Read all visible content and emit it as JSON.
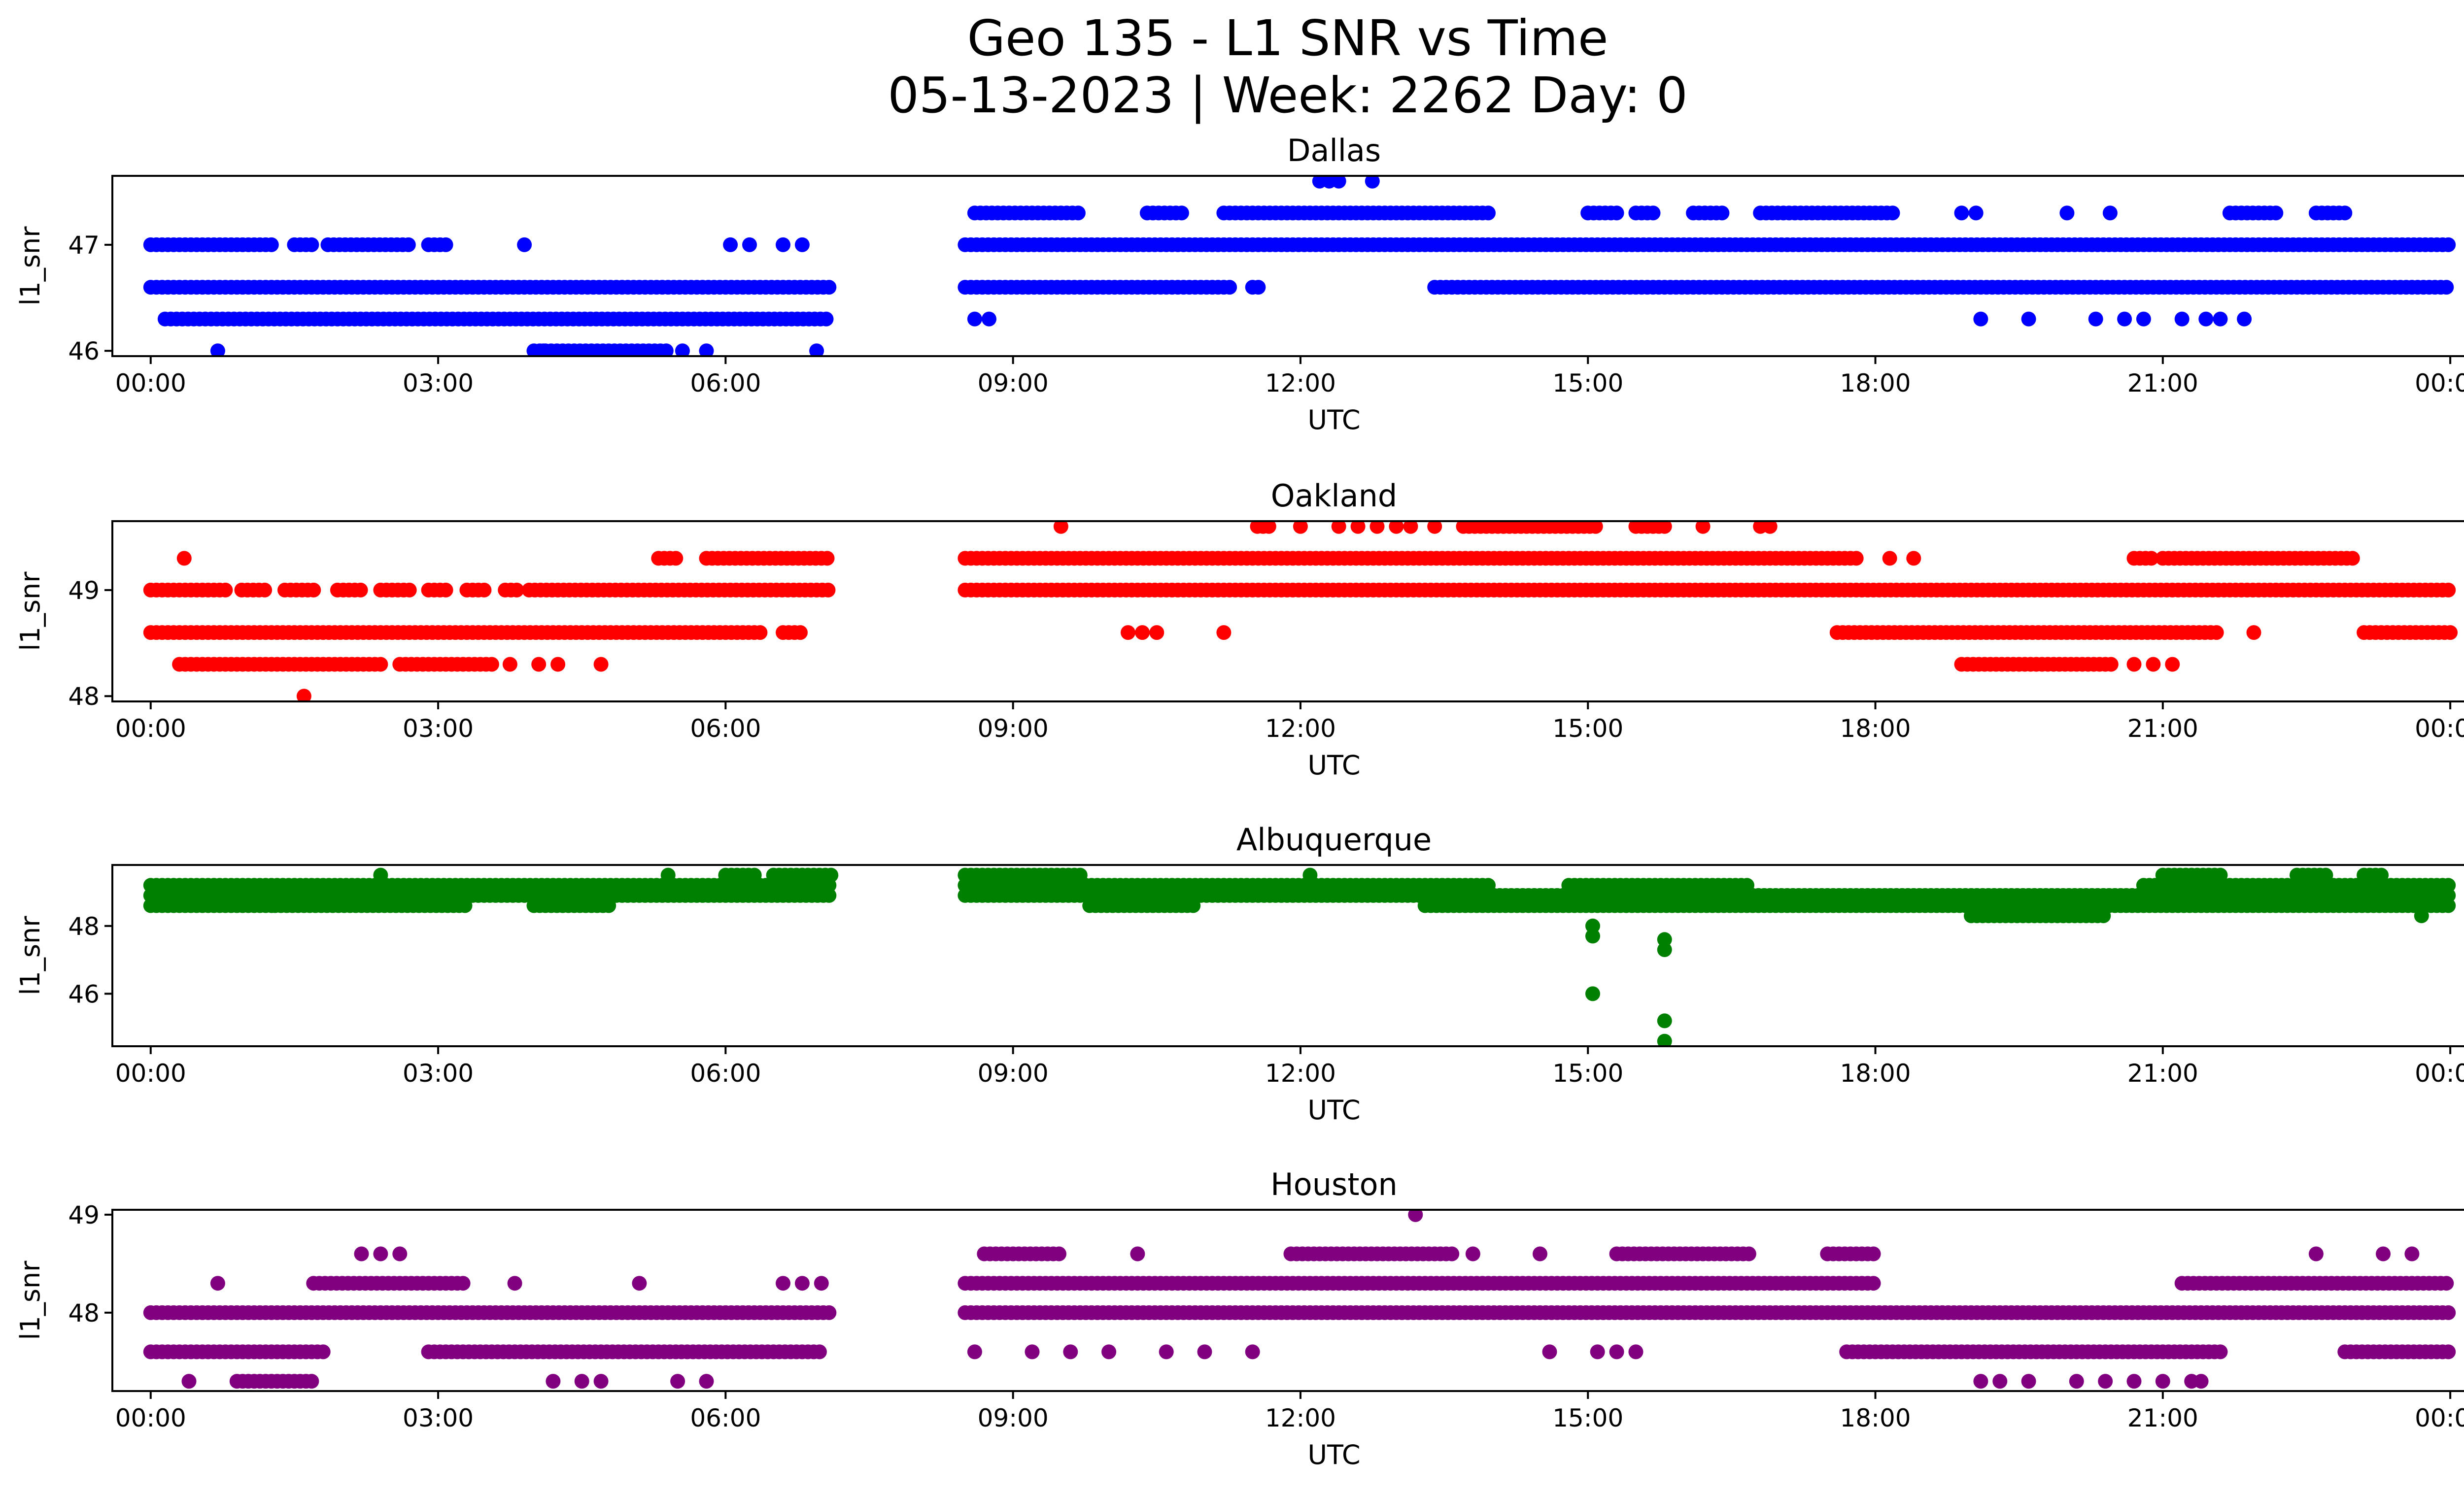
{
  "title": {
    "line1": "Geo 135 - L1 SNR vs Time",
    "line2": "05-13-2023 | Week: 2262 Day: 0"
  },
  "chart_data": [
    {
      "type": "scatter",
      "title": "Dallas",
      "xlabel": "UTC",
      "ylabel": "l1_snr",
      "color": "#0000ff",
      "xlim": [
        -0.4,
        25.1
      ],
      "ylim": [
        45.95,
        47.65
      ],
      "xticks": [
        "00:00",
        "03:00",
        "06:00",
        "09:00",
        "12:00",
        "15:00",
        "18:00",
        "21:00",
        "00:00"
      ],
      "yticks": [
        46,
        47
      ],
      "grid": false,
      "bands": [
        {
          "y": 47.0,
          "segments": [
            [
              0.0,
              1.3
            ],
            [
              1.5,
              1.7
            ],
            [
              1.85,
              2.7
            ],
            [
              2.9,
              3.1
            ],
            [
              8.5,
              24.0
            ]
          ]
        },
        {
          "y": 46.6,
          "segments": [
            [
              0.0,
              7.1
            ],
            [
              8.5,
              11.3
            ],
            [
              11.5,
              11.6
            ],
            [
              13.4,
              24.0
            ]
          ]
        },
        {
          "y": 46.3,
          "segments": [
            [
              0.15,
              7.1
            ]
          ]
        },
        {
          "y": 47.3,
          "segments": [
            [
              8.6,
              9.7
            ],
            [
              10.4,
              10.8
            ],
            [
              11.2,
              14.0
            ],
            [
              15.0,
              15.3
            ],
            [
              15.5,
              15.7
            ],
            [
              16.1,
              16.4
            ],
            [
              16.8,
              18.2
            ],
            [
              21.7,
              22.2
            ],
            [
              22.6,
              22.9
            ]
          ]
        },
        {
          "y": 46.0,
          "segments": [
            [
              4.0,
              5.4
            ]
          ]
        }
      ],
      "points": [
        [
          0.7,
          46.0
        ],
        [
          3.9,
          47.0
        ],
        [
          4.1,
          46.0
        ],
        [
          5.55,
          46.0
        ],
        [
          5.8,
          46.0
        ],
        [
          6.05,
          47.0
        ],
        [
          6.25,
          47.0
        ],
        [
          6.6,
          47.0
        ],
        [
          6.8,
          47.0
        ],
        [
          6.95,
          46.0
        ],
        [
          8.6,
          46.3
        ],
        [
          8.75,
          46.3
        ],
        [
          12.2,
          47.6
        ],
        [
          12.3,
          47.6
        ],
        [
          12.4,
          47.6
        ],
        [
          12.75,
          47.6
        ],
        [
          19.1,
          46.3
        ],
        [
          19.6,
          46.3
        ],
        [
          20.0,
          47.3
        ],
        [
          20.3,
          46.3
        ],
        [
          20.45,
          47.3
        ],
        [
          20.6,
          46.3
        ],
        [
          20.8,
          46.3
        ],
        [
          21.2,
          46.3
        ],
        [
          21.45,
          46.3
        ],
        [
          21.6,
          46.3
        ],
        [
          21.85,
          46.3
        ],
        [
          18.9,
          47.3
        ],
        [
          19.05,
          47.3
        ]
      ]
    },
    {
      "type": "scatter",
      "title": "Oakland",
      "xlabel": "UTC",
      "ylabel": "l1_snr",
      "color": "#ff0000",
      "xlim": [
        -0.4,
        25.1
      ],
      "ylim": [
        47.95,
        49.65
      ],
      "xticks": [
        "00:00",
        "03:00",
        "06:00",
        "09:00",
        "12:00",
        "15:00",
        "18:00",
        "21:00",
        "00:00"
      ],
      "yticks": [
        48,
        49
      ],
      "grid": false,
      "bands": [
        {
          "y": 49.0,
          "segments": [
            [
              0.0,
              0.8
            ],
            [
              0.95,
              1.2
            ],
            [
              1.4,
              1.7
            ],
            [
              1.95,
              2.2
            ],
            [
              2.4,
              2.7
            ],
            [
              2.9,
              3.1
            ],
            [
              3.3,
              3.5
            ],
            [
              3.7,
              3.85
            ],
            [
              3.95,
              7.1
            ],
            [
              8.5,
              24.0
            ]
          ]
        },
        {
          "y": 48.6,
          "segments": [
            [
              0.0,
              6.4
            ],
            [
              6.6,
              6.8
            ],
            [
              17.6,
              21.6
            ],
            [
              23.1,
              24.0
            ]
          ]
        },
        {
          "y": 48.3,
          "segments": [
            [
              0.3,
              2.4
            ],
            [
              2.6,
              3.6
            ],
            [
              18.9,
              20.5
            ]
          ]
        },
        {
          "y": 49.3,
          "segments": [
            [
              5.3,
              5.5
            ],
            [
              5.8,
              7.1
            ],
            [
              8.5,
              17.8
            ],
            [
              20.7,
              20.9
            ],
            [
              21.0,
              23.0
            ]
          ]
        },
        {
          "y": 49.6,
          "segments": [
            [
              11.55,
              11.7
            ],
            [
              13.7,
              15.1
            ],
            [
              15.5,
              15.8
            ]
          ]
        }
      ],
      "points": [
        [
          0.35,
          49.3
        ],
        [
          1.6,
          48.0
        ],
        [
          3.75,
          48.3
        ],
        [
          4.05,
          48.3
        ],
        [
          4.25,
          48.3
        ],
        [
          4.7,
          48.3
        ],
        [
          9.5,
          49.6
        ],
        [
          10.2,
          48.6
        ],
        [
          10.35,
          48.6
        ],
        [
          10.5,
          48.6
        ],
        [
          11.2,
          48.6
        ],
        [
          12.0,
          49.6
        ],
        [
          12.4,
          49.6
        ],
        [
          12.6,
          49.6
        ],
        [
          12.8,
          49.6
        ],
        [
          13.0,
          49.6
        ],
        [
          13.15,
          49.6
        ],
        [
          13.4,
          49.6
        ],
        [
          16.2,
          49.6
        ],
        [
          16.8,
          49.6
        ],
        [
          16.9,
          49.6
        ],
        [
          18.15,
          49.3
        ],
        [
          18.4,
          49.3
        ],
        [
          20.7,
          48.3
        ],
        [
          20.9,
          48.3
        ],
        [
          21.1,
          48.3
        ],
        [
          21.95,
          48.6
        ]
      ]
    },
    {
      "type": "scatter",
      "title": "Albuquerque",
      "xlabel": "UTC",
      "ylabel": "l1_snr",
      "color": "#008000",
      "xlim": [
        -0.4,
        25.1
      ],
      "ylim": [
        44.45,
        49.8
      ],
      "xticks": [
        "00:00",
        "03:00",
        "06:00",
        "09:00",
        "12:00",
        "15:00",
        "18:00",
        "21:00",
        "00:00"
      ],
      "yticks": [
        46,
        48
      ],
      "grid": false,
      "bands": [
        {
          "y": 49.2,
          "segments": [
            [
              0.0,
              7.1
            ],
            [
              8.5,
              14.0
            ],
            [
              14.8,
              16.7
            ],
            [
              20.8,
              24.0
            ]
          ]
        },
        {
          "y": 48.9,
          "segments": [
            [
              0.0,
              7.1
            ],
            [
              8.5,
              24.0
            ]
          ]
        },
        {
          "y": 48.6,
          "segments": [
            [
              0.0,
              1.3
            ],
            [
              1.3,
              3.3
            ],
            [
              4.0,
              4.8
            ],
            [
              9.8,
              10.9
            ],
            [
              13.3,
              24.0
            ]
          ]
        },
        {
          "y": 48.3,
          "segments": [
            [
              19.0,
              20.4
            ]
          ]
        },
        {
          "y": 49.5,
          "segments": [
            [
              8.5,
              9.7
            ],
            [
              6.0,
              6.3
            ],
            [
              6.5,
              7.1
            ],
            [
              21.0,
              21.6
            ],
            [
              22.4,
              22.7
            ],
            [
              23.1,
              23.3
            ]
          ]
        }
      ],
      "points": [
        [
          2.4,
          49.5
        ],
        [
          5.4,
          49.5
        ],
        [
          12.1,
          49.5
        ],
        [
          15.05,
          48.0
        ],
        [
          15.05,
          47.7
        ],
        [
          15.05,
          46.0
        ],
        [
          15.8,
          47.6
        ],
        [
          15.8,
          47.3
        ],
        [
          15.8,
          45.2
        ],
        [
          15.8,
          44.6
        ],
        [
          23.7,
          48.3
        ]
      ]
    },
    {
      "type": "scatter",
      "title": "Houston",
      "xlabel": "UTC",
      "ylabel": "l1_snr",
      "color": "#800080",
      "xlim": [
        -0.4,
        25.1
      ],
      "ylim": [
        47.2,
        49.05
      ],
      "xticks": [
        "00:00",
        "03:00",
        "06:00",
        "09:00",
        "12:00",
        "15:00",
        "18:00",
        "21:00",
        "00:00"
      ],
      "yticks": [
        48,
        49
      ],
      "grid": false,
      "bands": [
        {
          "y": 48.0,
          "segments": [
            [
              0.0,
              7.1
            ],
            [
              8.5,
              24.0
            ]
          ]
        },
        {
          "y": 47.6,
          "segments": [
            [
              0.0,
              1.8
            ],
            [
              2.9,
              7.0
            ],
            [
              17.7,
              21.6
            ],
            [
              22.9,
              24.0
            ]
          ]
        },
        {
          "y": 48.3,
          "segments": [
            [
              1.7,
              3.3
            ],
            [
              8.5,
              18.0
            ],
            [
              21.2,
              24.0
            ]
          ]
        },
        {
          "y": 47.3,
          "segments": [
            [
              0.9,
              1.7
            ]
          ]
        },
        {
          "y": 48.6,
          "segments": [
            [
              8.7,
              9.5
            ],
            [
              11.9,
              13.6
            ],
            [
              15.3,
              16.7
            ],
            [
              17.5,
              18.0
            ]
          ]
        }
      ],
      "points": [
        [
          0.4,
          47.3
        ],
        [
          0.7,
          48.3
        ],
        [
          2.2,
          48.6
        ],
        [
          2.4,
          48.6
        ],
        [
          2.6,
          48.6
        ],
        [
          3.8,
          48.3
        ],
        [
          4.2,
          47.3
        ],
        [
          4.5,
          47.3
        ],
        [
          4.7,
          47.3
        ],
        [
          5.1,
          48.3
        ],
        [
          5.5,
          47.3
        ],
        [
          5.8,
          47.3
        ],
        [
          6.6,
          48.3
        ],
        [
          6.8,
          48.3
        ],
        [
          7.0,
          48.3
        ],
        [
          8.6,
          47.6
        ],
        [
          9.2,
          47.6
        ],
        [
          9.6,
          47.6
        ],
        [
          10.0,
          47.6
        ],
        [
          10.3,
          48.6
        ],
        [
          10.6,
          47.6
        ],
        [
          11.0,
          47.6
        ],
        [
          11.5,
          47.6
        ],
        [
          13.2,
          49.0
        ],
        [
          13.8,
          48.6
        ],
        [
          14.5,
          48.6
        ],
        [
          14.6,
          47.6
        ],
        [
          15.1,
          47.6
        ],
        [
          15.3,
          47.6
        ],
        [
          15.5,
          47.6
        ],
        [
          19.1,
          47.3
        ],
        [
          19.3,
          47.3
        ],
        [
          19.6,
          47.3
        ],
        [
          20.1,
          47.3
        ],
        [
          20.4,
          47.3
        ],
        [
          20.7,
          47.3
        ],
        [
          21.0,
          47.3
        ],
        [
          21.3,
          47.3
        ],
        [
          21.4,
          47.3
        ],
        [
          22.6,
          48.6
        ],
        [
          23.3,
          48.6
        ],
        [
          23.6,
          48.6
        ]
      ]
    }
  ]
}
